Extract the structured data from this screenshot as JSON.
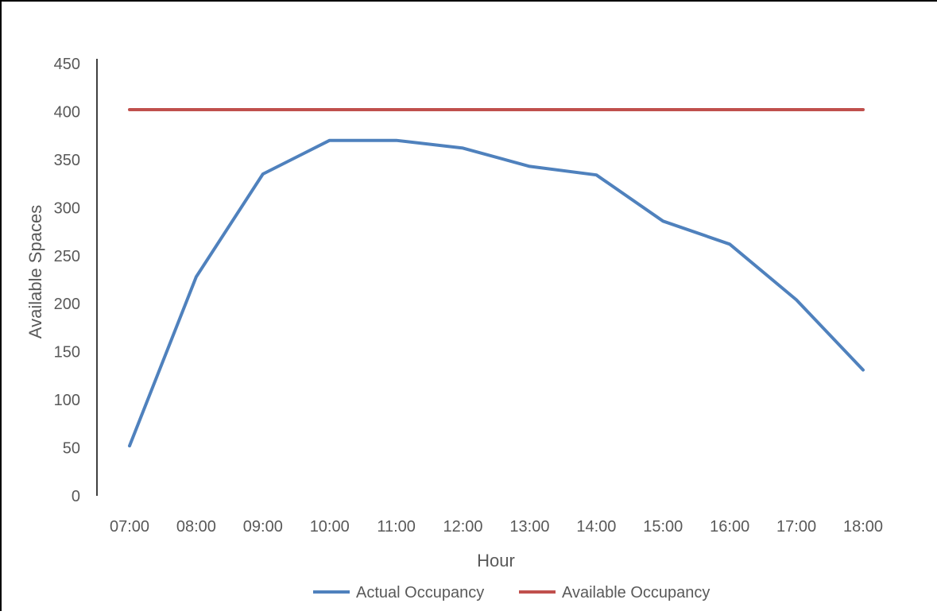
{
  "chart_data": {
    "type": "line",
    "title": "",
    "xlabel": "Hour",
    "ylabel": "Available Spaces",
    "categories": [
      "07:00",
      "08:00",
      "09:00",
      "10:00",
      "11:00",
      "12:00",
      "13:00",
      "14:00",
      "15:00",
      "16:00",
      "17:00",
      "18:00"
    ],
    "ylim": [
      0,
      450
    ],
    "yticks": [
      "0",
      "50",
      "100",
      "150",
      "200",
      "250",
      "300",
      "350",
      "400",
      "450"
    ],
    "grid": false,
    "legend_position": "bottom",
    "series": [
      {
        "name": "Actual Occupancy",
        "color": "#4f81bd",
        "values": [
          52,
          228,
          335,
          370,
          370,
          362,
          343,
          334,
          286,
          262,
          204,
          131
        ]
      },
      {
        "name": "Available Occupancy",
        "color": "#c0504d",
        "values": [
          402,
          402,
          402,
          402,
          402,
          402,
          402,
          402,
          402,
          402,
          402,
          402
        ]
      }
    ]
  }
}
